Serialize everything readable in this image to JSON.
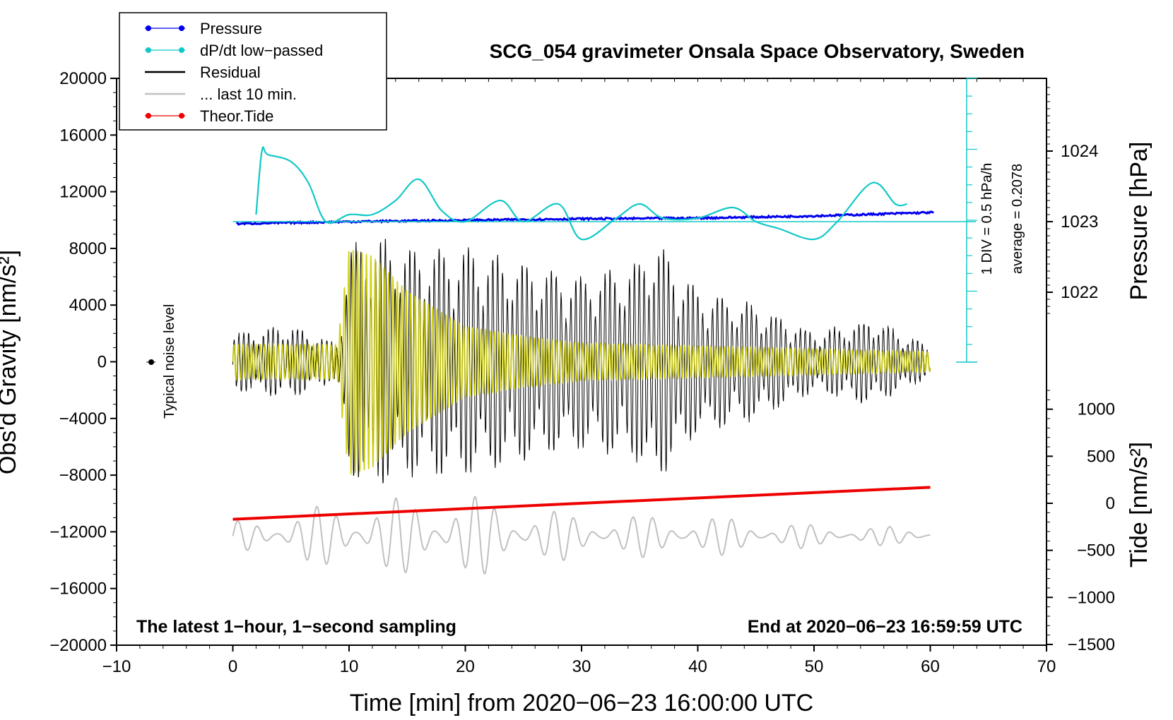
{
  "chart_data": {
    "type": "line",
    "title": "SCG_054 gravimeter Onsala Space Observatory, Sweden",
    "xlabel": "Time [min] from 2020−06−23 16:00:00 UTC",
    "ylabel_left": "Obs'd Gravity [nm/s²]",
    "ylabel_right_top": "Pressure [hPa]",
    "ylabel_right_bottom": "Tide [nm/s²]",
    "xlim": [
      -10,
      70
    ],
    "ylim_left": [
      -20000,
      20000
    ],
    "x_ticks": [
      "−10",
      "0",
      "10",
      "20",
      "30",
      "40",
      "50",
      "60",
      "70"
    ],
    "y_ticks_left": [
      "20000",
      "16000",
      "12000",
      "8000",
      "4000",
      "0",
      "−4000",
      "−8000",
      "−12000",
      "−16000",
      "−20000"
    ],
    "pressure_ticks": [
      "1024",
      "1023",
      "1022"
    ],
    "tide_ticks": [
      "1000",
      "500",
      "0",
      "−500",
      "−1000",
      "−1500"
    ],
    "notes": {
      "bottom_left": "The latest 1−hour, 1−second sampling",
      "bottom_right": "End at 2020−06−23 16:59:59 UTC",
      "noise": "Typical noise level",
      "div": "1 DIV = 0.5 hPa/h",
      "average": "average = 0.2078"
    },
    "legend": [
      {
        "label": "Pressure",
        "color": "#0000ee",
        "marker": "dot"
      },
      {
        "label": "dP/dt low−passed",
        "color": "#11c8c8",
        "marker": "dot"
      },
      {
        "label": "Residual",
        "color": "#000000",
        "marker": "none"
      },
      {
        "label": "... last 10 min.",
        "color": "#c0c0c0",
        "marker": "none"
      },
      {
        "label": "Theor.Tide",
        "color": "#ee0000",
        "marker": "dot"
      }
    ],
    "series": [
      {
        "name": "Pressure",
        "unit": "hPa",
        "x": [
          0,
          10,
          20,
          30,
          40,
          50,
          60
        ],
        "values": [
          1022.97,
          1023.0,
          1023.02,
          1023.04,
          1023.05,
          1023.08,
          1023.13
        ]
      },
      {
        "name": "dP/dt low-passed",
        "unit": "hPa/h",
        "x": [
          2,
          2.5,
          3,
          5,
          6.5,
          8,
          10,
          12,
          14,
          16,
          18,
          20,
          23,
          25,
          28,
          30,
          33,
          35,
          37,
          40,
          43,
          45,
          47,
          50,
          52,
          55,
          57,
          58
        ],
        "values": [
          0.1,
          1.0,
          0.95,
          0.85,
          0.55,
          0.0,
          0.1,
          0.1,
          0.3,
          0.6,
          0.15,
          0.0,
          0.3,
          0.0,
          0.25,
          -0.25,
          0.05,
          0.25,
          0.05,
          0.05,
          0.2,
          0.0,
          -0.1,
          -0.25,
          0.0,
          0.55,
          0.25,
          0.25
        ]
      },
      {
        "name": "Residual",
        "unit": "nm/s²",
        "x": [
          0,
          5,
          9,
          10,
          12,
          15,
          20,
          25,
          30,
          35,
          36,
          40,
          45,
          50,
          55,
          60
        ],
        "amplitude": [
          2000,
          2500,
          1200,
          8000,
          9000,
          8000,
          8000,
          7000,
          6000,
          7000,
          9000,
          5000,
          4000,
          2000,
          3000,
          1000
        ]
      },
      {
        "name": "... last 10 min.",
        "unit": "nm/s²",
        "x": [
          0,
          10,
          20,
          30,
          40,
          50,
          60
        ],
        "amplitude": [
          1000,
          2500,
          3000,
          1500,
          1500,
          800,
          600
        ]
      },
      {
        "name": "Theor.Tide",
        "unit": "nm/s²",
        "x": [
          0,
          60
        ],
        "values": [
          -170,
          170
        ]
      }
    ]
  }
}
